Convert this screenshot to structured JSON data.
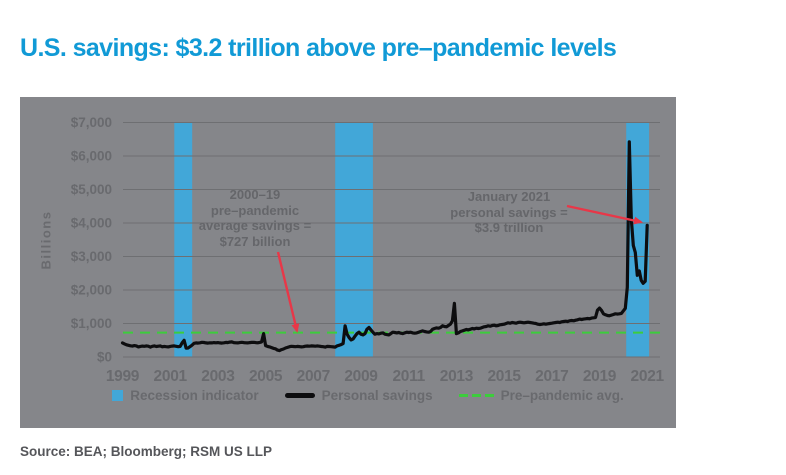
{
  "header": {
    "title": "U.S. savings: $3.2 trillion above pre–pandemic levels"
  },
  "footer": {
    "source": "Source: BEA; Bloomberg; RSM US LLP"
  },
  "colors": {
    "title_blue": "#119ad6",
    "panel_gray": "#85868a",
    "gridline": "#6e6f72",
    "recession_blue": "#42a7d8",
    "savings_line": "#0d0d0f",
    "pre_pandemic_green": "#3ccd3c",
    "arrow_red": "#e83748",
    "axis_text": "#696a6e",
    "annotation_text": "#65666a",
    "source_text": "#55565a"
  },
  "chart_data": {
    "type": "line",
    "title": "",
    "xlabel": "",
    "ylabel": "Billions",
    "ylim": [
      0,
      7000
    ],
    "xlim": [
      1999,
      2021.5
    ],
    "grid": true,
    "legend_position": "bottom",
    "y_tick_values": [
      0,
      1000,
      2000,
      3000,
      4000,
      5000,
      6000,
      7000
    ],
    "y_tick_labels": [
      "$0",
      "$1,000",
      "$2,000",
      "$3,000",
      "$4,000",
      "$5,000",
      "$6,000",
      "$7,000"
    ],
    "x_tick_values": [
      1999,
      2001,
      2003,
      2005,
      2007,
      2009,
      2011,
      2013,
      2015,
      2017,
      2019,
      2021
    ],
    "pre_pandemic_avg": 727,
    "recession_bands": [
      [
        2001.17,
        2001.92
      ],
      [
        2007.92,
        2009.5
      ],
      [
        2020.12,
        2021.08
      ]
    ],
    "series_start": {
      "year": 1999,
      "month": 1,
      "step": "monthly"
    },
    "series": [
      {
        "name": "Personal savings",
        "values": [
          420,
          390,
          365,
          350,
          335,
          325,
          340,
          330,
          300,
          315,
          325,
          318,
          330,
          322,
          295,
          318,
          330,
          312,
          322,
          330,
          305,
          315,
          308,
          300,
          315,
          325,
          330,
          320,
          308,
          315,
          420,
          500,
          265,
          270,
          310,
          355,
          410,
          420,
          415,
          425,
          440,
          432,
          422,
          415,
          425,
          420,
          430,
          425,
          430,
          420,
          415,
          425,
          435,
          430,
          445,
          450,
          430,
          425,
          420,
          430,
          440,
          430,
          425,
          420,
          430,
          435,
          440,
          430,
          425,
          435,
          450,
          700,
          340,
          315,
          300,
          280,
          258,
          245,
          205,
          190,
          220,
          240,
          268,
          288,
          308,
          318,
          312,
          306,
          316,
          310,
          300,
          306,
          322,
          328,
          322,
          332,
          328,
          322,
          332,
          322,
          312,
          306,
          296,
          316,
          312,
          306,
          300,
          295,
          330,
          350,
          370,
          400,
          930,
          680,
          580,
          510,
          540,
          620,
          700,
          740,
          680,
          660,
          700,
          830,
          880,
          810,
          740,
          680,
          700,
          690,
          710,
          720,
          680,
          670,
          660,
          700,
          740,
          730,
          720,
          730,
          710,
          700,
          720,
          740,
          730,
          740,
          720,
          710,
          720,
          740,
          760,
          780,
          760,
          750,
          740,
          760,
          830,
          850,
          870,
          860,
          880,
          930,
          910,
          900,
          940,
          980,
          1080,
          1600,
          700,
          720,
          760,
          780,
          800,
          820,
          810,
          830,
          850,
          840,
          860,
          850,
          860,
          880,
          900,
          910,
          930,
          920,
          940,
          950,
          930,
          940,
          960,
          970,
          980,
          1000,
          1020,
          1010,
          1030,
          1020,
          1010,
          1030,
          1040,
          1030,
          1020,
          1030,
          1040,
          1030,
          1020,
          1010,
          1000,
          980,
          970,
          980,
          990,
          980,
          990,
          1000,
          1010,
          1020,
          1030,
          1040,
          1030,
          1050,
          1060,
          1070,
          1060,
          1080,
          1090,
          1080,
          1100,
          1110,
          1130,
          1120,
          1130,
          1140,
          1150,
          1140,
          1160,
          1170,
          1180,
          1400,
          1460,
          1390,
          1290,
          1260,
          1240,
          1230,
          1250,
          1270,
          1290,
          1280,
          1290,
          1300,
          1380,
          1450,
          2080,
          6420,
          4120,
          3330,
          3120,
          2440,
          2570,
          2290,
          2200,
          2260,
          3930
        ]
      }
    ],
    "legend": [
      {
        "swatch": "rect",
        "label": "Recession indicator"
      },
      {
        "swatch": "line",
        "label": "Personal savings"
      },
      {
        "swatch": "dashed",
        "label": "Pre–pandemic avg."
      }
    ],
    "annotations": {
      "avg_note": {
        "text": "2000–19\npre–pandemic\naverage savings =\n$727 billion"
      },
      "jan_note": {
        "text": "January 2021\npersonal savings =\n$3.9 trillion"
      },
      "arrows": [
        {
          "from": [
            258,
            155
          ],
          "to": [
            277,
            234
          ]
        },
        {
          "from": [
            547,
            109
          ],
          "to": [
            621,
            125
          ]
        }
      ]
    }
  }
}
